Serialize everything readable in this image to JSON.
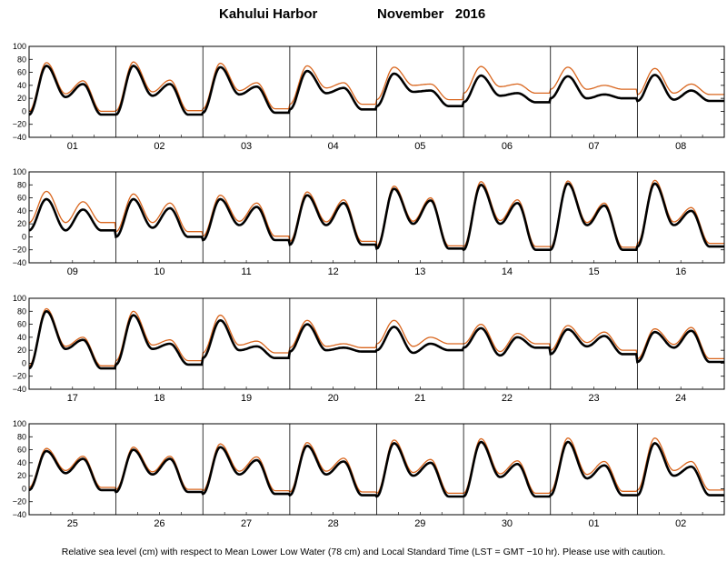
{
  "chart_data": {
    "type": "line",
    "title_station": "Kahului Harbor",
    "title_period": "November   2016",
    "ylim": [
      -40,
      100
    ],
    "yticks": [
      -40,
      -20,
      0,
      20,
      40,
      60,
      80,
      100
    ],
    "grid": false,
    "footnote": "Relative sea level (cm) with respect to Mean Lower Low Water (78 cm) and Local Standard Time (LST = GMT −10 hr). Please use with caution.",
    "series_colors": {
      "observed": "#d9661e",
      "predicted": "#000000"
    },
    "panels": [
      {
        "days": [
          "01",
          "02",
          "03",
          "04",
          "05",
          "06",
          "07",
          "08"
        ],
        "high_highs": [
          70,
          70,
          68,
          62,
          58,
          55,
          54,
          56
        ],
        "low_highs": [
          42,
          42,
          38,
          36,
          32,
          28,
          26,
          32
        ],
        "high_lows": [
          22,
          24,
          26,
          28,
          30,
          24,
          20,
          18
        ],
        "low_lows": [
          -5,
          -5,
          -2,
          3,
          8,
          14,
          20,
          16
        ],
        "observed_offset": [
          5,
          6,
          6,
          8,
          10,
          14,
          14,
          10
        ]
      },
      {
        "days": [
          "09",
          "10",
          "11",
          "12",
          "13",
          "14",
          "15",
          "16"
        ],
        "high_highs": [
          58,
          58,
          58,
          64,
          74,
          80,
          82,
          82
        ],
        "low_highs": [
          42,
          44,
          46,
          52,
          56,
          52,
          48,
          40
        ],
        "high_lows": [
          10,
          14,
          18,
          18,
          20,
          20,
          18,
          18
        ],
        "low_lows": [
          10,
          0,
          -5,
          -12,
          -18,
          -20,
          -20,
          -15
        ],
        "observed_offset": [
          12,
          8,
          6,
          5,
          4,
          5,
          4,
          5
        ]
      },
      {
        "days": [
          "17",
          "18",
          "19",
          "20",
          "21",
          "22",
          "23",
          "24"
        ],
        "high_highs": [
          80,
          74,
          66,
          60,
          56,
          54,
          52,
          48
        ],
        "low_highs": [
          36,
          30,
          26,
          24,
          30,
          40,
          42,
          50
        ],
        "high_lows": [
          22,
          22,
          20,
          20,
          16,
          12,
          26,
          24
        ],
        "low_lows": [
          -8,
          -2,
          8,
          18,
          20,
          24,
          14,
          2
        ],
        "observed_offset": [
          4,
          6,
          8,
          6,
          10,
          6,
          6,
          5
        ]
      },
      {
        "days": [
          "25",
          "26",
          "27",
          "28",
          "29",
          "30",
          "01",
          "02"
        ],
        "high_highs": [
          58,
          60,
          64,
          66,
          70,
          72,
          72,
          70
        ],
        "low_highs": [
          46,
          46,
          44,
          42,
          40,
          38,
          36,
          34
        ],
        "high_lows": [
          24,
          22,
          22,
          22,
          20,
          18,
          16,
          20
        ],
        "low_lows": [
          -2,
          -5,
          -8,
          -10,
          -12,
          -12,
          -10,
          -10
        ],
        "observed_offset": [
          4,
          4,
          5,
          5,
          5,
          5,
          6,
          8
        ]
      }
    ]
  }
}
